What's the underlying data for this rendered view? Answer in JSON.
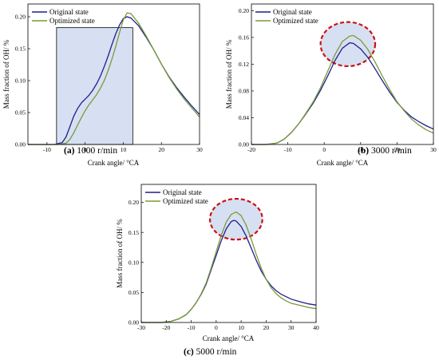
{
  "chart_data": [
    {
      "type": "line",
      "caption_letter": "(a)",
      "caption_text": " 1000 r/min",
      "xlabel": "Crank angle/ °CA",
      "ylabel": "Mass fraction of OH/ %",
      "xlim": [
        -15,
        30
      ],
      "ylim": [
        0,
        0.22
      ],
      "xticks": [
        -10,
        0,
        10,
        20,
        30
      ],
      "yticks": [
        0.0,
        0.05,
        0.1,
        0.15,
        0.2
      ],
      "ytick_labels": [
        "0.00",
        "0.05",
        "0.10",
        "0.15",
        "0.20"
      ],
      "legend_position": "top-left",
      "highlight": {
        "shape": "rectangle",
        "x": [
          -7.5,
          12.5
        ],
        "y": [
          0,
          0.183
        ]
      },
      "series": [
        {
          "name": "Original state",
          "color": "#1f1f8c",
          "points": [
            [
              -15,
              0
            ],
            [
              -8,
              0
            ],
            [
              -6,
              0.003
            ],
            [
              -5,
              0.012
            ],
            [
              -4,
              0.028
            ],
            [
              -3,
              0.044
            ],
            [
              -2,
              0.056
            ],
            [
              -1,
              0.065
            ],
            [
              0,
              0.071
            ],
            [
              1,
              0.077
            ],
            [
              2,
              0.085
            ],
            [
              3,
              0.095
            ],
            [
              4,
              0.107
            ],
            [
              5,
              0.122
            ],
            [
              6,
              0.138
            ],
            [
              7,
              0.156
            ],
            [
              8,
              0.173
            ],
            [
              9,
              0.187
            ],
            [
              10,
              0.197
            ],
            [
              11,
              0.2
            ],
            [
              12,
              0.198
            ],
            [
              14,
              0.186
            ],
            [
              16,
              0.168
            ],
            [
              18,
              0.148
            ],
            [
              20,
              0.126
            ],
            [
              22,
              0.106
            ],
            [
              24,
              0.089
            ],
            [
              26,
              0.074
            ],
            [
              28,
              0.06
            ],
            [
              30,
              0.047
            ]
          ]
        },
        {
          "name": "Optimized state",
          "color": "#7a9a3a",
          "points": [
            [
              -15,
              0
            ],
            [
              -7,
              0
            ],
            [
              -5,
              0.002
            ],
            [
              -4,
              0.008
            ],
            [
              -3,
              0.018
            ],
            [
              -2,
              0.03
            ],
            [
              -1,
              0.042
            ],
            [
              0,
              0.053
            ],
            [
              1,
              0.062
            ],
            [
              2,
              0.07
            ],
            [
              3,
              0.078
            ],
            [
              4,
              0.088
            ],
            [
              5,
              0.1
            ],
            [
              6,
              0.115
            ],
            [
              7,
              0.133
            ],
            [
              8,
              0.153
            ],
            [
              9,
              0.175
            ],
            [
              10,
              0.195
            ],
            [
              11,
              0.206
            ],
            [
              12,
              0.205
            ],
            [
              14,
              0.19
            ],
            [
              16,
              0.17
            ],
            [
              18,
              0.148
            ],
            [
              20,
              0.126
            ],
            [
              22,
              0.105
            ],
            [
              24,
              0.087
            ],
            [
              26,
              0.071
            ],
            [
              28,
              0.057
            ],
            [
              30,
              0.043
            ]
          ]
        }
      ]
    },
    {
      "type": "line",
      "caption_letter": "(b)",
      "caption_text": " 3000 r/min",
      "xlabel": "Crank angle/ °CA",
      "ylabel": "Mass fraction of OH/ %",
      "xlim": [
        -20,
        30
      ],
      "ylim": [
        0,
        0.21
      ],
      "xticks": [
        -20,
        -10,
        0,
        10,
        20,
        30
      ],
      "yticks": [
        0.0,
        0.04,
        0.08,
        0.12,
        0.16,
        0.2
      ],
      "ytick_labels": [
        "0.00",
        "0.04",
        "0.08",
        "0.12",
        "0.16",
        "0.20"
      ],
      "legend_position": "top-left",
      "highlight": {
        "shape": "ellipse",
        "cx": 6.5,
        "cy": 0.15,
        "rx": 7.5,
        "ry": 0.033
      },
      "series": [
        {
          "name": "Original state",
          "color": "#1f1f8c",
          "points": [
            [
              -20,
              0
            ],
            [
              -16,
              0
            ],
            [
              -13,
              0.002
            ],
            [
              -11,
              0.008
            ],
            [
              -9,
              0.018
            ],
            [
              -7,
              0.031
            ],
            [
              -5,
              0.046
            ],
            [
              -3,
              0.062
            ],
            [
              -1,
              0.081
            ],
            [
              1,
              0.103
            ],
            [
              3,
              0.126
            ],
            [
              5,
              0.144
            ],
            [
              7,
              0.152
            ],
            [
              8,
              0.151
            ],
            [
              10,
              0.143
            ],
            [
              12,
              0.13
            ],
            [
              14,
              0.113
            ],
            [
              16,
              0.095
            ],
            [
              18,
              0.078
            ],
            [
              20,
              0.063
            ],
            [
              22,
              0.051
            ],
            [
              24,
              0.041
            ],
            [
              26,
              0.034
            ],
            [
              28,
              0.028
            ],
            [
              30,
              0.023
            ]
          ]
        },
        {
          "name": "Optimized state",
          "color": "#7a9a3a",
          "points": [
            [
              -20,
              0
            ],
            [
              -16,
              0
            ],
            [
              -13,
              0.002
            ],
            [
              -11,
              0.008
            ],
            [
              -9,
              0.018
            ],
            [
              -7,
              0.031
            ],
            [
              -5,
              0.047
            ],
            [
              -3,
              0.064
            ],
            [
              -1,
              0.085
            ],
            [
              1,
              0.11
            ],
            [
              3,
              0.135
            ],
            [
              5,
              0.154
            ],
            [
              7,
              0.162
            ],
            [
              8,
              0.163
            ],
            [
              10,
              0.156
            ],
            [
              12,
              0.142
            ],
            [
              14,
              0.123
            ],
            [
              16,
              0.102
            ],
            [
              18,
              0.082
            ],
            [
              20,
              0.064
            ],
            [
              22,
              0.05
            ],
            [
              24,
              0.038
            ],
            [
              26,
              0.029
            ],
            [
              28,
              0.022
            ],
            [
              30,
              0.017
            ]
          ]
        }
      ]
    },
    {
      "type": "line",
      "caption_letter": "(c)",
      "caption_text": " 5000 r/min",
      "xlabel": "Crank angle/ °CA",
      "ylabel": "Mass fraction of OH/ %",
      "xlim": [
        -30,
        40
      ],
      "ylim": [
        0,
        0.23
      ],
      "xticks": [
        -30,
        -20,
        -10,
        0,
        10,
        20,
        30,
        40
      ],
      "yticks": [
        0.0,
        0.05,
        0.1,
        0.15,
        0.2
      ],
      "ytick_labels": [
        "0.00",
        "0.05",
        "0.10",
        "0.15",
        "0.20"
      ],
      "legend_position": "top-left",
      "highlight": {
        "shape": "ellipse",
        "cx": 8,
        "cy": 0.172,
        "rx": 10.5,
        "ry": 0.034
      },
      "series": [
        {
          "name": "Original state",
          "color": "#1f1f8c",
          "points": [
            [
              -30,
              0
            ],
            [
              -22,
              0
            ],
            [
              -18,
              0.002
            ],
            [
              -15,
              0.006
            ],
            [
              -12,
              0.013
            ],
            [
              -10,
              0.022
            ],
            [
              -8,
              0.033
            ],
            [
              -6,
              0.047
            ],
            [
              -4,
              0.064
            ],
            [
              -2,
              0.088
            ],
            [
              0,
              0.112
            ],
            [
              2,
              0.136
            ],
            [
              4,
              0.156
            ],
            [
              6,
              0.168
            ],
            [
              7,
              0.17
            ],
            [
              8,
              0.169
            ],
            [
              10,
              0.16
            ],
            [
              12,
              0.144
            ],
            [
              14,
              0.124
            ],
            [
              16,
              0.104
            ],
            [
              18,
              0.086
            ],
            [
              20,
              0.072
            ],
            [
              22,
              0.061
            ],
            [
              24,
              0.053
            ],
            [
              26,
              0.047
            ],
            [
              28,
              0.043
            ],
            [
              30,
              0.039
            ],
            [
              34,
              0.034
            ],
            [
              37,
              0.031
            ],
            [
              40,
              0.029
            ]
          ]
        },
        {
          "name": "Optimized state",
          "color": "#7a9a3a",
          "points": [
            [
              -30,
              0
            ],
            [
              -22,
              0
            ],
            [
              -18,
              0.002
            ],
            [
              -15,
              0.006
            ],
            [
              -12,
              0.013
            ],
            [
              -10,
              0.022
            ],
            [
              -8,
              0.033
            ],
            [
              -6,
              0.048
            ],
            [
              -4,
              0.066
            ],
            [
              -2,
              0.091
            ],
            [
              0,
              0.118
            ],
            [
              2,
              0.145
            ],
            [
              4,
              0.167
            ],
            [
              6,
              0.18
            ],
            [
              8,
              0.184
            ],
            [
              10,
              0.178
            ],
            [
              12,
              0.162
            ],
            [
              14,
              0.139
            ],
            [
              16,
              0.114
            ],
            [
              18,
              0.091
            ],
            [
              20,
              0.072
            ],
            [
              22,
              0.058
            ],
            [
              24,
              0.048
            ],
            [
              26,
              0.041
            ],
            [
              28,
              0.036
            ],
            [
              30,
              0.032
            ],
            [
              34,
              0.028
            ],
            [
              37,
              0.025
            ],
            [
              40,
              0.023
            ]
          ]
        }
      ]
    }
  ]
}
